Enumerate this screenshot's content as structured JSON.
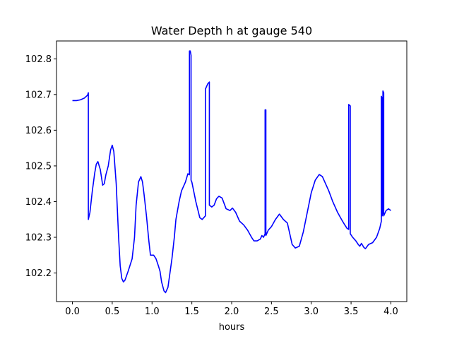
{
  "chart_data": {
    "type": "line",
    "title": "Water Depth h at gauge 540",
    "xlabel": "hours",
    "ylabel": "",
    "xlim": [
      -0.2,
      4.2
    ],
    "ylim": [
      102.12,
      102.85
    ],
    "grid": false,
    "x_ticks": [
      {
        "value": 0.0,
        "label": "0.0"
      },
      {
        "value": 0.5,
        "label": "0.5"
      },
      {
        "value": 1.0,
        "label": "1.0"
      },
      {
        "value": 1.5,
        "label": "1.5"
      },
      {
        "value": 2.0,
        "label": "2.0"
      },
      {
        "value": 2.5,
        "label": "2.5"
      },
      {
        "value": 3.0,
        "label": "3.0"
      },
      {
        "value": 3.5,
        "label": "3.5"
      },
      {
        "value": 4.0,
        "label": "4.0"
      }
    ],
    "y_ticks": [
      {
        "value": 102.2,
        "label": "102.2"
      },
      {
        "value": 102.3,
        "label": "102.3"
      },
      {
        "value": 102.4,
        "label": "102.4"
      },
      {
        "value": 102.5,
        "label": "102.5"
      },
      {
        "value": 102.6,
        "label": "102.6"
      },
      {
        "value": 102.7,
        "label": "102.7"
      },
      {
        "value": 102.8,
        "label": "102.8"
      }
    ],
    "series": [
      {
        "color": "#0000ff",
        "points": [
          [
            0.0,
            102.683
          ],
          [
            0.05,
            102.683
          ],
          [
            0.1,
            102.685
          ],
          [
            0.15,
            102.69
          ],
          [
            0.19,
            102.698
          ],
          [
            0.2,
            102.705
          ],
          [
            0.2,
            102.35
          ],
          [
            0.22,
            102.37
          ],
          [
            0.25,
            102.43
          ],
          [
            0.28,
            102.48
          ],
          [
            0.3,
            102.505
          ],
          [
            0.32,
            102.512
          ],
          [
            0.35,
            102.49
          ],
          [
            0.38,
            102.446
          ],
          [
            0.4,
            102.45
          ],
          [
            0.42,
            102.475
          ],
          [
            0.45,
            102.5
          ],
          [
            0.48,
            102.545
          ],
          [
            0.5,
            102.558
          ],
          [
            0.52,
            102.54
          ],
          [
            0.55,
            102.45
          ],
          [
            0.58,
            102.3
          ],
          [
            0.6,
            102.22
          ],
          [
            0.62,
            102.185
          ],
          [
            0.64,
            102.175
          ],
          [
            0.66,
            102.18
          ],
          [
            0.7,
            102.205
          ],
          [
            0.75,
            102.24
          ],
          [
            0.78,
            102.3
          ],
          [
            0.8,
            102.39
          ],
          [
            0.83,
            102.455
          ],
          [
            0.86,
            102.47
          ],
          [
            0.88,
            102.455
          ],
          [
            0.9,
            102.42
          ],
          [
            0.93,
            102.36
          ],
          [
            0.96,
            102.29
          ],
          [
            0.98,
            102.25
          ],
          [
            1.02,
            102.25
          ],
          [
            1.05,
            102.24
          ],
          [
            1.08,
            102.22
          ],
          [
            1.1,
            102.205
          ],
          [
            1.12,
            102.175
          ],
          [
            1.15,
            102.15
          ],
          [
            1.17,
            102.145
          ],
          [
            1.2,
            102.16
          ],
          [
            1.25,
            102.24
          ],
          [
            1.28,
            102.3
          ],
          [
            1.3,
            102.35
          ],
          [
            1.34,
            102.4
          ],
          [
            1.37,
            102.43
          ],
          [
            1.42,
            102.455
          ],
          [
            1.45,
            102.478
          ],
          [
            1.47,
            102.475
          ],
          [
            1.47,
            102.822
          ],
          [
            1.48,
            102.822
          ],
          [
            1.49,
            102.81
          ],
          [
            1.49,
            102.46
          ],
          [
            1.5,
            102.455
          ],
          [
            1.55,
            102.4
          ],
          [
            1.6,
            102.355
          ],
          [
            1.63,
            102.35
          ],
          [
            1.67,
            102.36
          ],
          [
            1.67,
            102.715
          ],
          [
            1.7,
            102.73
          ],
          [
            1.72,
            102.735
          ],
          [
            1.72,
            102.39
          ],
          [
            1.75,
            102.385
          ],
          [
            1.78,
            102.39
          ],
          [
            1.81,
            102.408
          ],
          [
            1.84,
            102.415
          ],
          [
            1.88,
            102.41
          ],
          [
            1.93,
            102.38
          ],
          [
            1.98,
            102.375
          ],
          [
            2.01,
            102.382
          ],
          [
            2.05,
            102.37
          ],
          [
            2.1,
            102.345
          ],
          [
            2.15,
            102.335
          ],
          [
            2.2,
            102.32
          ],
          [
            2.25,
            102.3
          ],
          [
            2.28,
            102.29
          ],
          [
            2.32,
            102.29
          ],
          [
            2.36,
            102.295
          ],
          [
            2.38,
            102.305
          ],
          [
            2.4,
            102.3
          ],
          [
            2.42,
            102.31
          ],
          [
            2.42,
            102.657
          ],
          [
            2.43,
            102.657
          ],
          [
            2.43,
            102.305
          ],
          [
            2.46,
            102.32
          ],
          [
            2.5,
            102.33
          ],
          [
            2.55,
            102.35
          ],
          [
            2.6,
            102.365
          ],
          [
            2.65,
            102.35
          ],
          [
            2.7,
            102.34
          ],
          [
            2.73,
            102.31
          ],
          [
            2.76,
            102.28
          ],
          [
            2.8,
            102.27
          ],
          [
            2.85,
            102.275
          ],
          [
            2.9,
            102.315
          ],
          [
            2.95,
            102.37
          ],
          [
            3.0,
            102.425
          ],
          [
            3.05,
            102.46
          ],
          [
            3.1,
            102.476
          ],
          [
            3.14,
            102.47
          ],
          [
            3.17,
            102.455
          ],
          [
            3.22,
            102.43
          ],
          [
            3.27,
            102.4
          ],
          [
            3.33,
            102.37
          ],
          [
            3.38,
            102.35
          ],
          [
            3.42,
            102.335
          ],
          [
            3.45,
            102.325
          ],
          [
            3.47,
            102.322
          ],
          [
            3.47,
            102.672
          ],
          [
            3.49,
            102.668
          ],
          [
            3.49,
            102.31
          ],
          [
            3.52,
            102.3
          ],
          [
            3.56,
            102.29
          ],
          [
            3.59,
            102.28
          ],
          [
            3.61,
            102.275
          ],
          [
            3.63,
            102.283
          ],
          [
            3.66,
            102.272
          ],
          [
            3.68,
            102.268
          ],
          [
            3.72,
            102.28
          ],
          [
            3.77,
            102.285
          ],
          [
            3.82,
            102.3
          ],
          [
            3.86,
            102.325
          ],
          [
            3.88,
            102.345
          ],
          [
            3.88,
            102.695
          ],
          [
            3.89,
            102.69
          ],
          [
            3.89,
            102.36
          ],
          [
            3.9,
            102.37
          ],
          [
            3.9,
            102.71
          ],
          [
            3.91,
            102.705
          ],
          [
            3.91,
            102.36
          ],
          [
            3.94,
            102.375
          ],
          [
            3.97,
            102.38
          ],
          [
            4.0,
            102.375
          ]
        ]
      }
    ]
  }
}
